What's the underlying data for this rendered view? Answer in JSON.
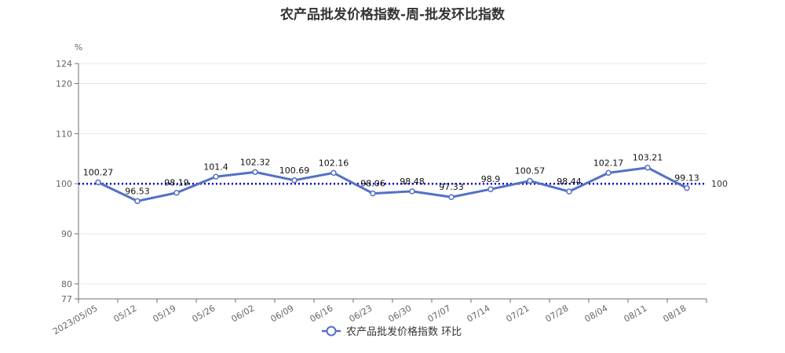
{
  "chart_data": {
    "type": "line",
    "title": "农产品批发价格指数-周-批发环比指数",
    "ylabel": "%",
    "xlabel": "",
    "categories": [
      "2023/05/05",
      "05/12",
      "05/19",
      "05/26",
      "06/02",
      "06/09",
      "06/16",
      "06/23",
      "06/30",
      "07/07",
      "07/14",
      "07/21",
      "07/28",
      "08/04",
      "08/11",
      "08/18"
    ],
    "series": [
      {
        "name": "农产品批发价格指数 环比",
        "values": [
          100.27,
          96.53,
          98.19,
          101.4,
          102.32,
          100.69,
          102.16,
          98.06,
          98.48,
          97.33,
          98.9,
          100.57,
          98.44,
          102.17,
          103.21,
          99.13
        ],
        "color": "#5470c6"
      }
    ],
    "ylim": [
      77,
      124
    ],
    "yticks": [
      77,
      80,
      90,
      100,
      110,
      120,
      124
    ],
    "reference_line": {
      "value": 100,
      "label": "100",
      "color": "#0000cc"
    },
    "grid": true,
    "legend_position": "bottom-center"
  }
}
